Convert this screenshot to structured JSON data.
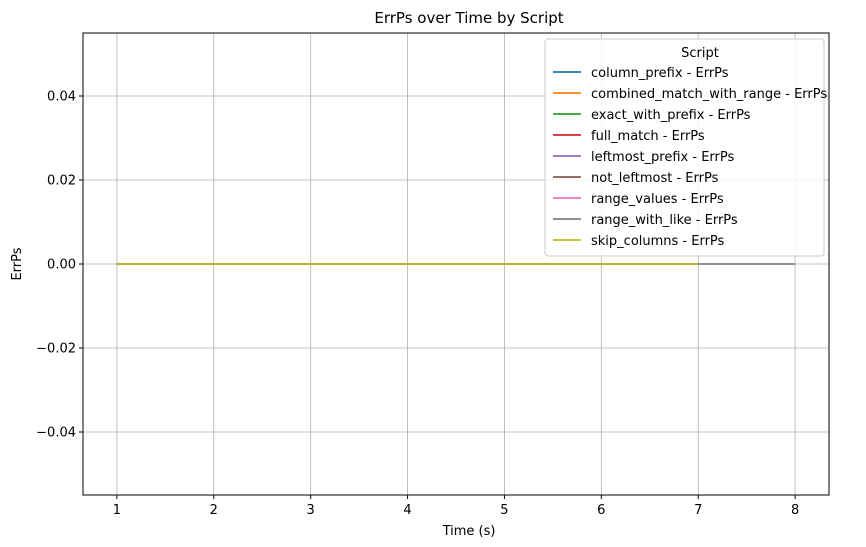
{
  "chart_data": {
    "type": "line",
    "title": "ErrPs over Time by Script",
    "xlabel": "Time (s)",
    "ylabel": "ErrPs",
    "xlim": [
      0.65,
      8.35
    ],
    "ylim": [
      -0.055,
      0.055
    ],
    "xticks": [
      1,
      2,
      3,
      4,
      5,
      6,
      7,
      8
    ],
    "yticks": [
      0.04,
      0.02,
      0.0,
      -0.02,
      -0.04
    ],
    "xtick_labels": [
      "1",
      "2",
      "3",
      "4",
      "5",
      "6",
      "7",
      "8"
    ],
    "ytick_labels": [
      "0.04",
      "0.02",
      "0.00",
      "−0.02",
      "−0.04"
    ],
    "grid": true,
    "legend": {
      "title": "Script",
      "placement": "top-right"
    },
    "series": [
      {
        "name": "column_prefix - ErrPs",
        "color": "#1f77b4",
        "x": [
          1,
          2,
          3,
          4,
          5,
          6,
          7
        ],
        "y": [
          0,
          0,
          0,
          0,
          0,
          0,
          0
        ]
      },
      {
        "name": "combined_match_with_range - ErrPs",
        "color": "#ff7f0e",
        "x": [
          1,
          2,
          3,
          4,
          5,
          6,
          7
        ],
        "y": [
          0,
          0,
          0,
          0,
          0,
          0,
          0
        ]
      },
      {
        "name": "exact_with_prefix - ErrPs",
        "color": "#2ca02c",
        "x": [
          1,
          2,
          3,
          4,
          5,
          6,
          7
        ],
        "y": [
          0,
          0,
          0,
          0,
          0,
          0,
          0
        ]
      },
      {
        "name": "full_match - ErrPs",
        "color": "#d62728",
        "x": [
          1,
          2,
          3,
          4,
          5,
          6,
          7
        ],
        "y": [
          0,
          0,
          0,
          0,
          0,
          0,
          0
        ]
      },
      {
        "name": "leftmost_prefix - ErrPs",
        "color": "#9467bd",
        "x": [
          1,
          2,
          3,
          4,
          5,
          6,
          7
        ],
        "y": [
          0,
          0,
          0,
          0,
          0,
          0,
          0
        ]
      },
      {
        "name": "not_leftmost - ErrPs",
        "color": "#8c564b",
        "x": [
          1,
          2,
          3,
          4,
          5,
          6,
          7
        ],
        "y": [
          0,
          0,
          0,
          0,
          0,
          0,
          0
        ]
      },
      {
        "name": "range_values - ErrPs",
        "color": "#e377c2",
        "x": [
          1,
          2,
          3,
          4,
          5,
          6,
          7
        ],
        "y": [
          0,
          0,
          0,
          0,
          0,
          0,
          0
        ]
      },
      {
        "name": "range_with_like - ErrPs",
        "color": "#7f7f7f",
        "x": [
          1,
          2,
          3,
          4,
          5,
          6,
          7,
          8
        ],
        "y": [
          0,
          0,
          0,
          0,
          0,
          0,
          0,
          0
        ]
      },
      {
        "name": "skip_columns - ErrPs",
        "color": "#bcbd22",
        "x": [
          1,
          2,
          3,
          4,
          5,
          6,
          7
        ],
        "y": [
          0,
          0,
          0,
          0,
          0,
          0,
          0
        ]
      }
    ]
  }
}
